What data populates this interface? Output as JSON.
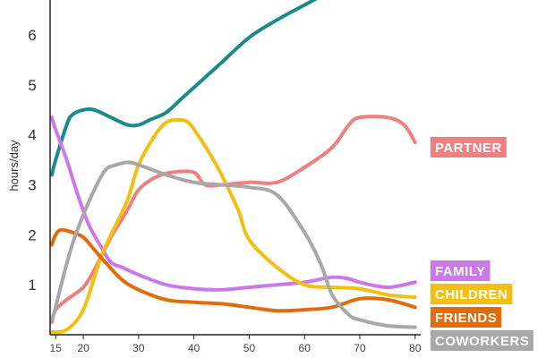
{
  "chart_data": {
    "type": "line",
    "title": "",
    "xlabel": "",
    "ylabel": "hours/day",
    "xlim": [
      14,
      81
    ],
    "ylim": [
      0,
      6.7
    ],
    "x_ticks": [
      15,
      20,
      30,
      40,
      50,
      60,
      70,
      80
    ],
    "y_ticks": [
      1,
      2,
      3,
      4,
      5,
      6
    ],
    "grid": false,
    "legend_placement": "right",
    "series": [
      {
        "color": "#1a8a8a",
        "x": [
          14.3,
          15,
          17,
          18,
          20,
          22,
          25,
          28,
          30,
          32,
          35,
          38,
          40,
          45,
          50,
          55,
          60,
          65
        ],
        "y": [
          3.2,
          3.5,
          4.2,
          4.4,
          4.5,
          4.5,
          4.35,
          4.2,
          4.2,
          4.3,
          4.45,
          4.75,
          4.95,
          5.45,
          5.95,
          6.3,
          6.6,
          6.9
        ]
      },
      {
        "name": "PARTNER",
        "color": "#f08080",
        "x": [
          14.3,
          15,
          17,
          20,
          22,
          25,
          28,
          30,
          33,
          36,
          40,
          42,
          45,
          50,
          55,
          60,
          65,
          68,
          70,
          75,
          78,
          80
        ],
        "y": [
          0.25,
          0.5,
          0.7,
          0.95,
          1.3,
          1.95,
          2.5,
          2.9,
          3.15,
          3.25,
          3.25,
          3.0,
          3.0,
          3.05,
          3.05,
          3.35,
          3.75,
          4.2,
          4.35,
          4.35,
          4.2,
          3.85
        ]
      },
      {
        "name": "FAMILY",
        "color": "#cc78ea",
        "x": [
          14.3,
          15,
          17,
          19,
          21,
          23,
          25,
          27,
          30,
          35,
          40,
          45,
          50,
          55,
          60,
          65,
          68,
          70,
          75,
          80
        ],
        "y": [
          4.35,
          4.1,
          3.5,
          2.8,
          2.2,
          1.8,
          1.45,
          1.35,
          1.2,
          1.0,
          0.92,
          0.9,
          0.95,
          1.0,
          1.05,
          1.15,
          1.12,
          1.05,
          0.95,
          1.05
        ]
      },
      {
        "name": "CHILDREN",
        "color": "#f2c012",
        "x": [
          14.3,
          17,
          20,
          23,
          25,
          28,
          30,
          33,
          35,
          37,
          39,
          41,
          43,
          45,
          48,
          50,
          55,
          60,
          65,
          70,
          75,
          80
        ],
        "y": [
          0.05,
          0.1,
          0.5,
          1.5,
          2.0,
          2.7,
          3.4,
          4.0,
          4.25,
          4.3,
          4.25,
          3.95,
          3.6,
          3.2,
          2.5,
          1.9,
          1.35,
          1.0,
          0.95,
          0.92,
          0.8,
          0.75
        ]
      },
      {
        "name": "FRIENDS",
        "color": "#e36c0a",
        "x": [
          14.3,
          15,
          16,
          18,
          20,
          22,
          24,
          27,
          30,
          35,
          40,
          45,
          50,
          55,
          60,
          65,
          70,
          75,
          80
        ],
        "y": [
          1.8,
          2.0,
          2.1,
          2.05,
          1.95,
          1.7,
          1.45,
          1.1,
          0.9,
          0.7,
          0.65,
          0.62,
          0.55,
          0.48,
          0.5,
          0.55,
          0.72,
          0.7,
          0.55
        ]
      },
      {
        "name": "COWORKERS",
        "color": "#a8a8a8",
        "x": [
          14.3,
          15,
          16,
          18,
          20,
          22,
          24,
          26,
          28,
          30,
          35,
          40,
          45,
          50,
          55,
          60,
          63,
          65,
          68,
          70,
          75,
          80
        ],
        "y": [
          0.3,
          0.55,
          1.0,
          1.8,
          2.4,
          2.9,
          3.3,
          3.4,
          3.45,
          3.4,
          3.2,
          3.05,
          3.0,
          2.95,
          2.8,
          2.05,
          1.4,
          0.8,
          0.4,
          0.3,
          0.18,
          0.15
        ]
      }
    ]
  }
}
